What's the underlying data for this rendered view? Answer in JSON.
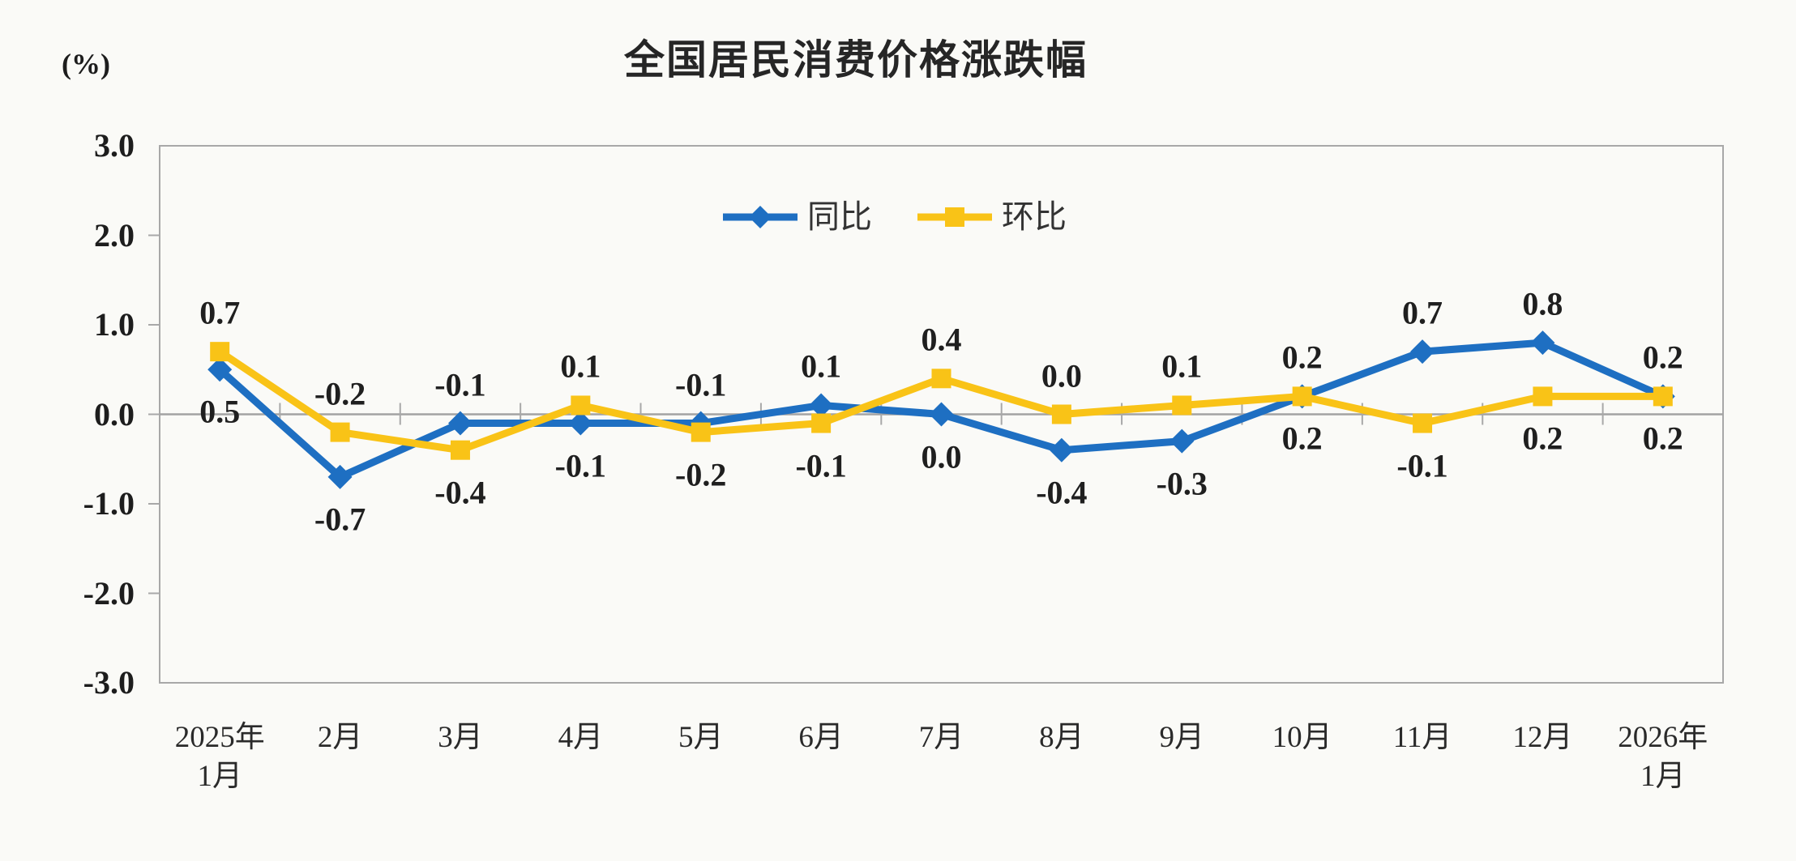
{
  "chart_data": {
    "type": "line",
    "title": "全国居民消费价格涨跌幅",
    "ylabel": "(%)",
    "xlabel": "",
    "ylim": [
      -3.0,
      3.0
    ],
    "grid": false,
    "legend_position": "top-center",
    "y_ticks": [
      {
        "label": "3.0",
        "value": 3
      },
      {
        "label": "2.0",
        "value": 2
      },
      {
        "label": "1.0",
        "value": 1
      },
      {
        "label": "0.0",
        "value": 0
      },
      {
        "label": "-1.0",
        "value": -1
      },
      {
        "label": "-2.0",
        "value": -2
      },
      {
        "label": "-3.0",
        "value": -3
      }
    ],
    "categories": [
      {
        "line1": "2025年",
        "line2": "1月"
      },
      {
        "line1": "2月"
      },
      {
        "line1": "3月"
      },
      {
        "line1": "4月"
      },
      {
        "line1": "5月"
      },
      {
        "line1": "6月"
      },
      {
        "line1": "7月"
      },
      {
        "line1": "8月"
      },
      {
        "line1": "9月"
      },
      {
        "line1": "10月"
      },
      {
        "line1": "11月"
      },
      {
        "line1": "12月"
      },
      {
        "line1": "2026年",
        "line2": "1月"
      }
    ],
    "series": [
      {
        "name": "同比",
        "color": "#1E6FC2",
        "marker": "diamond",
        "values": [
          0.5,
          -0.7,
          -0.1,
          -0.1,
          -0.1,
          0.1,
          0.0,
          -0.4,
          -0.3,
          0.2,
          0.7,
          0.8,
          0.2
        ],
        "labels": [
          "0.5",
          "-0.7",
          "-0.1",
          "-0.1",
          "-0.1",
          "0.1",
          "0.0",
          "-0.4",
          "-0.3",
          "0.2",
          "0.7",
          "0.8",
          "0.2"
        ],
        "label_positions": [
          "below",
          "below",
          "above",
          "below",
          "above",
          "above",
          "below",
          "below",
          "below",
          "above",
          "above",
          "above",
          "above"
        ]
      },
      {
        "name": "环比",
        "color": "#F9C317",
        "marker": "square",
        "values": [
          0.7,
          -0.2,
          -0.4,
          0.1,
          -0.2,
          -0.1,
          0.4,
          0.0,
          0.1,
          0.2,
          -0.1,
          0.2,
          0.2
        ],
        "labels": [
          "0.7",
          "-0.2",
          "-0.4",
          "0.1",
          "-0.2",
          "-0.1",
          "0.4",
          "0.0",
          "0.1",
          "0.2",
          "-0.1",
          "0.2",
          "0.2"
        ],
        "label_positions": [
          "above",
          "above",
          "below",
          "above",
          "below",
          "below",
          "above",
          "above",
          "above",
          "below",
          "below",
          "below",
          "below"
        ]
      }
    ],
    "legend": [
      {
        "label": "同比",
        "color": "#1E6FC2",
        "marker": "diamond"
      },
      {
        "label": "环比",
        "color": "#F9C317",
        "marker": "square"
      }
    ],
    "axis_color": "#A8A8A8",
    "zero_line_color": "#A3A3A3",
    "background_color": "#FAFAF7"
  }
}
